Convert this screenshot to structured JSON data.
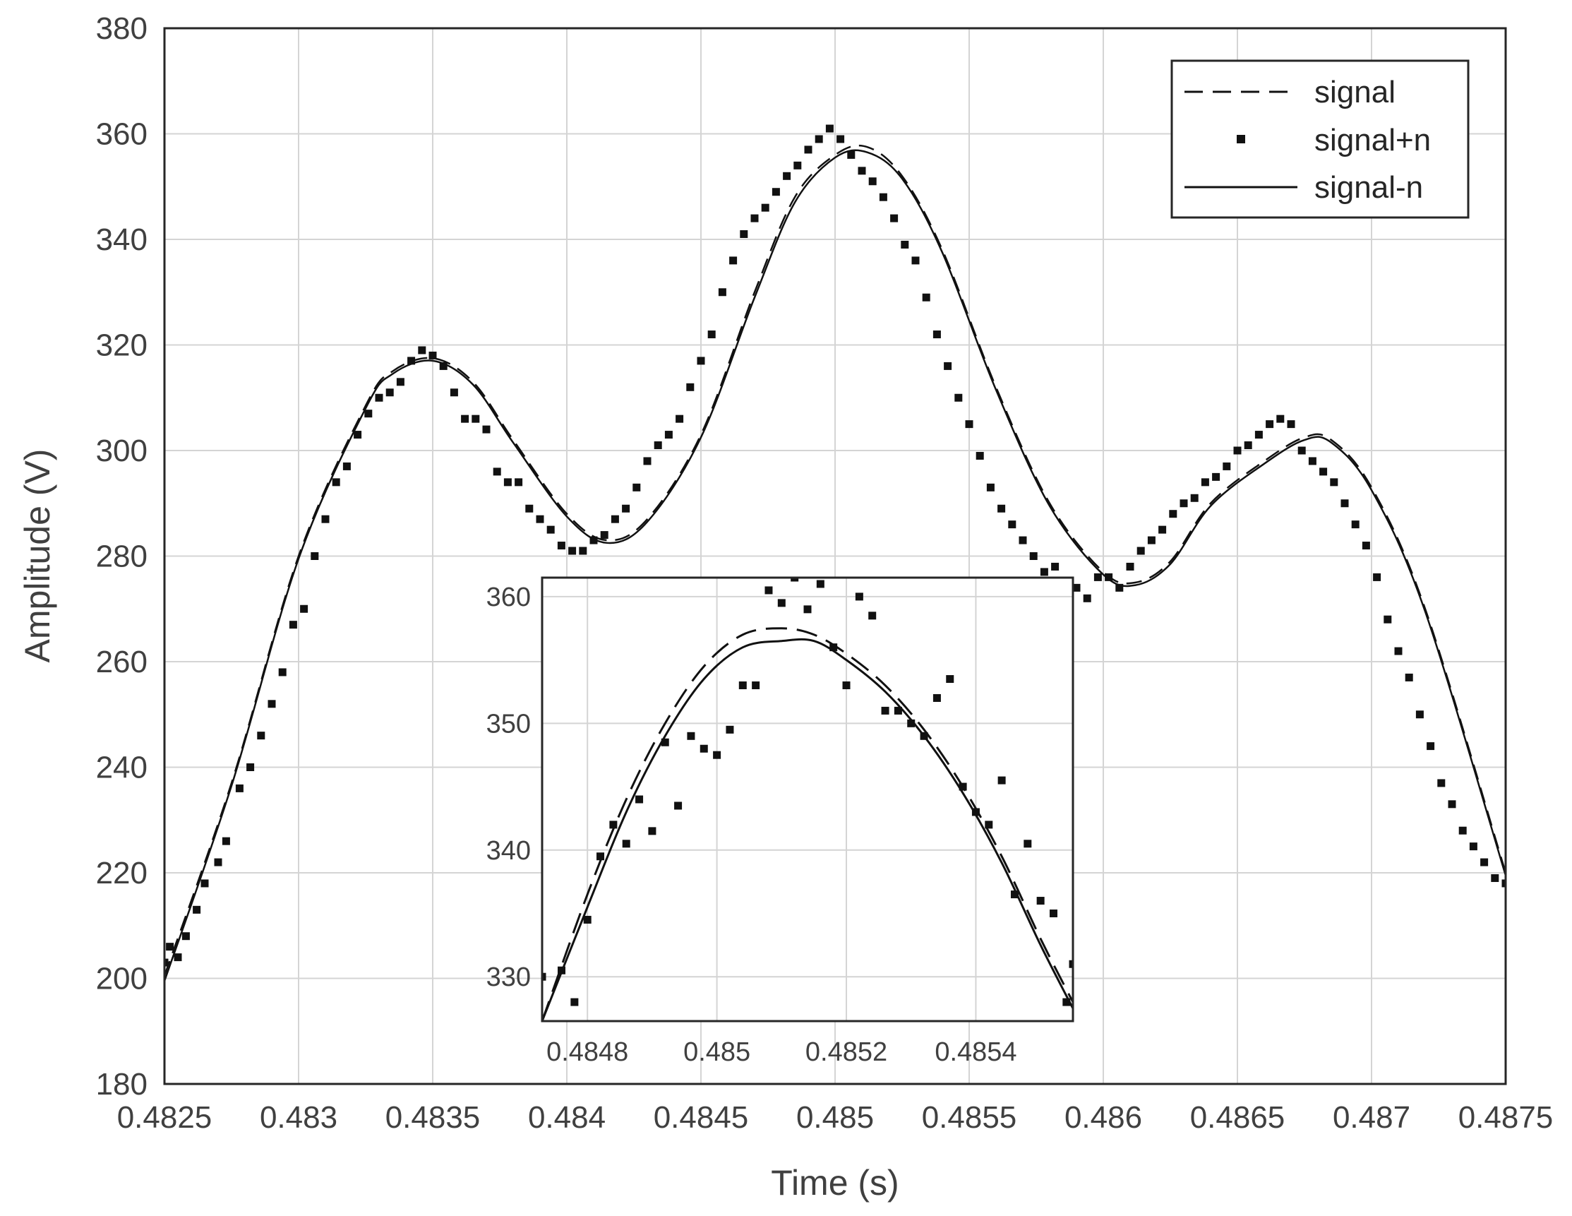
{
  "chart_data": [
    {
      "type": "line",
      "xlabel": "Time (s)",
      "ylabel": "Amplitude (V)",
      "xlim": [
        0.4825,
        0.4875
      ],
      "ylim": [
        180,
        380
      ],
      "xticks": [
        0.4825,
        0.483,
        0.4835,
        0.484,
        0.4845,
        0.485,
        0.4855,
        0.486,
        0.4865,
        0.487,
        0.4875
      ],
      "xtick_labels": [
        "0.4825",
        "0.483",
        "0.4835",
        "0.484",
        "0.4845",
        "0.485",
        "0.4855",
        "0.486",
        "0.4865",
        "0.487",
        "0.4875"
      ],
      "yticks": [
        180,
        200,
        220,
        240,
        260,
        280,
        300,
        320,
        340,
        360,
        380
      ],
      "ytick_labels": [
        "180",
        "200",
        "220",
        "240",
        "260",
        "280",
        "300",
        "320",
        "340",
        "360",
        "380"
      ],
      "grid": true,
      "legend_position": "top-right",
      "series": [
        {
          "name": "signal",
          "style": "dashed",
          "x": [
            0.4825,
            0.48275,
            0.483,
            0.48325,
            0.48335,
            0.4835,
            0.48365,
            0.4838,
            0.484,
            0.48415,
            0.4843,
            0.4845,
            0.4847,
            0.48485,
            0.485,
            0.48512,
            0.48525,
            0.4854,
            0.4856,
            0.4858,
            0.486,
            0.48612,
            0.48625,
            0.4864,
            0.4866,
            0.48675,
            0.48685,
            0.487,
            0.4872,
            0.4875
          ],
          "y": [
            200.5,
            237,
            280,
            308.5,
            315,
            317.5,
            313,
            302,
            288,
            283,
            287,
            303,
            330,
            348,
            356,
            357.5,
            352,
            338,
            312,
            290,
            277,
            275,
            279,
            290,
            298,
            302.5,
            302,
            293,
            270,
            220
          ]
        },
        {
          "name": "signal+n",
          "style": "markers",
          "x": [
            0.4825,
            0.48252,
            0.48255,
            0.48258,
            0.48262,
            0.48265,
            0.4827,
            0.48273,
            0.48278,
            0.48282,
            0.48286,
            0.4829,
            0.48294,
            0.48298,
            0.48302,
            0.48306,
            0.4831,
            0.48314,
            0.48318,
            0.48322,
            0.48326,
            0.4833,
            0.48334,
            0.48338,
            0.48342,
            0.48346,
            0.4835,
            0.48354,
            0.48358,
            0.48362,
            0.48366,
            0.4837,
            0.48374,
            0.48378,
            0.48382,
            0.48386,
            0.4839,
            0.48394,
            0.48398,
            0.48402,
            0.48406,
            0.4841,
            0.48414,
            0.48418,
            0.48422,
            0.48426,
            0.4843,
            0.48434,
            0.48438,
            0.48442,
            0.48446,
            0.4845,
            0.48454,
            0.48458,
            0.48462,
            0.48466,
            0.4847,
            0.48474,
            0.48478,
            0.48482,
            0.48486,
            0.4849,
            0.48494,
            0.48498,
            0.48502,
            0.48506,
            0.4851,
            0.48514,
            0.48518,
            0.48522,
            0.48526,
            0.4853,
            0.48534,
            0.48538,
            0.48542,
            0.48546,
            0.4855,
            0.48554,
            0.48558,
            0.48562,
            0.48566,
            0.4857,
            0.48574,
            0.48578,
            0.48582,
            0.48586,
            0.4859,
            0.48594,
            0.48598,
            0.48602,
            0.48606,
            0.4861,
            0.48614,
            0.48618,
            0.48622,
            0.48626,
            0.4863,
            0.48634,
            0.48638,
            0.48642,
            0.48646,
            0.4865,
            0.48654,
            0.48658,
            0.48662,
            0.48666,
            0.4867,
            0.48674,
            0.48678,
            0.48682,
            0.48686,
            0.4869,
            0.48694,
            0.48698,
            0.48702,
            0.48706,
            0.4871,
            0.48714,
            0.48718,
            0.48722,
            0.48726,
            0.4873,
            0.48734,
            0.48738,
            0.48742,
            0.48746,
            0.4875
          ],
          "y": [
            203,
            206,
            204,
            208,
            213,
            218,
            222,
            226,
            236,
            240,
            246,
            252,
            258,
            267,
            270,
            280,
            287,
            294,
            297,
            303,
            307,
            310,
            311,
            313,
            317,
            319,
            318,
            316,
            311,
            306,
            306,
            304,
            296,
            294,
            294,
            289,
            287,
            285,
            282,
            281,
            281,
            283,
            284,
            287,
            289,
            293,
            298,
            301,
            303,
            306,
            312,
            317,
            322,
            330,
            336,
            341,
            344,
            346,
            349,
            352,
            354,
            357,
            359,
            361,
            359,
            356,
            353,
            351,
            348,
            344,
            339,
            336,
            329,
            322,
            316,
            310,
            305,
            299,
            293,
            289,
            286,
            283,
            280,
            277,
            278,
            275,
            274,
            272,
            276,
            276,
            274,
            278,
            281,
            283,
            285,
            288,
            290,
            291,
            294,
            295,
            297,
            300,
            301,
            303,
            305,
            306,
            305,
            300,
            298,
            296,
            294,
            290,
            286,
            282,
            276,
            268,
            262,
            257,
            250,
            244,
            237,
            233,
            228,
            225,
            222,
            219,
            218
          ]
        },
        {
          "name": "signal-n",
          "style": "solid",
          "x": [
            0.4825,
            0.48275,
            0.483,
            0.48325,
            0.48335,
            0.4835,
            0.48365,
            0.4838,
            0.484,
            0.48415,
            0.4843,
            0.4845,
            0.4847,
            0.48485,
            0.485,
            0.48512,
            0.48525,
            0.4854,
            0.4856,
            0.4858,
            0.486,
            0.48612,
            0.48625,
            0.4864,
            0.4866,
            0.48675,
            0.48685,
            0.487,
            0.4872,
            0.4875
          ],
          "y": [
            199.5,
            236.5,
            279.5,
            308,
            314.5,
            317,
            312.5,
            301.5,
            287.5,
            282.5,
            286.5,
            302.5,
            329,
            347,
            355.5,
            356.5,
            351.5,
            337.5,
            311.5,
            289.5,
            276.5,
            274.5,
            278.5,
            289.5,
            297.5,
            302,
            301.5,
            292.5,
            269.5,
            219.5
          ]
        }
      ]
    },
    {
      "type": "line",
      "inset": true,
      "xlim": [
        0.48473,
        0.48555
      ],
      "ylim": [
        326.5,
        361.5
      ],
      "xticks": [
        0.4848,
        0.485,
        0.4852,
        0.4854
      ],
      "xtick_labels": [
        "0.4848",
        "0.485",
        "0.4852",
        "0.4854"
      ],
      "yticks": [
        330,
        340,
        350,
        360
      ],
      "ytick_labels": [
        "330",
        "340",
        "350",
        "360"
      ],
      "grid": true,
      "series": [
        {
          "name": "signal",
          "style": "dashed",
          "x": [
            0.48473,
            0.4848,
            0.48486,
            0.48492,
            0.48498,
            0.48504,
            0.4851,
            0.48515,
            0.4852,
            0.48526,
            0.48532,
            0.48538,
            0.48544,
            0.4855,
            0.48555
          ],
          "y": [
            326.5,
            336.5,
            344,
            350,
            354.5,
            357,
            357.5,
            357,
            355.5,
            353,
            349.5,
            345,
            339.5,
            333,
            328
          ]
        },
        {
          "name": "signal+n",
          "style": "markers",
          "x": [
            0.48473,
            0.48476,
            0.48478,
            0.4848,
            0.48482,
            0.48484,
            0.48486,
            0.48488,
            0.4849,
            0.48492,
            0.48494,
            0.48496,
            0.48498,
            0.485,
            0.48502,
            0.48504,
            0.48506,
            0.48508,
            0.4851,
            0.48512,
            0.48514,
            0.48516,
            0.48518,
            0.4852,
            0.48522,
            0.48524,
            0.48526,
            0.48528,
            0.4853,
            0.48532,
            0.48534,
            0.48536,
            0.48538,
            0.4854,
            0.48542,
            0.48544,
            0.48546,
            0.48548,
            0.4855,
            0.48552,
            0.48554,
            0.48555
          ],
          "y": [
            330,
            330.5,
            328,
            334.5,
            339.5,
            342,
            340.5,
            344,
            341.5,
            348.5,
            343.5,
            349,
            348,
            347.5,
            349.5,
            353,
            353,
            360.5,
            359.5,
            361.5,
            359,
            361,
            356,
            353,
            360,
            358.5,
            351,
            351,
            350,
            349,
            352,
            353.5,
            345,
            343,
            342,
            345.5,
            336.5,
            340.5,
            336,
            335,
            328,
            331
          ]
        },
        {
          "name": "signal-n",
          "style": "solid",
          "x": [
            0.48473,
            0.4848,
            0.48486,
            0.48492,
            0.48498,
            0.48504,
            0.4851,
            0.48515,
            0.4852,
            0.48526,
            0.48532,
            0.48538,
            0.48544,
            0.4855,
            0.48555
          ],
          "y": [
            326.5,
            335.5,
            343,
            349,
            353.5,
            356,
            356.5,
            356.5,
            355,
            352.5,
            349,
            344.5,
            339,
            332.5,
            327.5
          ]
        }
      ]
    }
  ]
}
